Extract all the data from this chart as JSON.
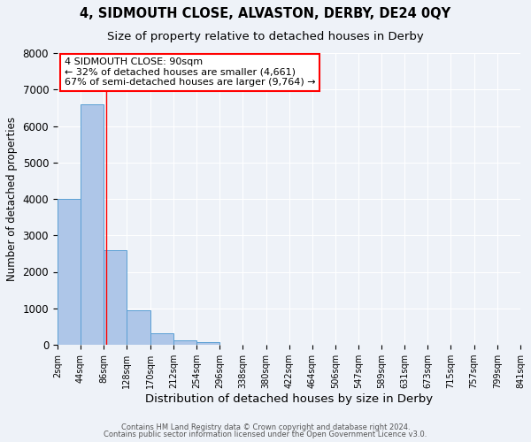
{
  "title": "4, SIDMOUTH CLOSE, ALVASTON, DERBY, DE24 0QY",
  "subtitle": "Size of property relative to detached houses in Derby",
  "xlabel": "Distribution of detached houses by size in Derby",
  "ylabel": "Number of detached properties",
  "bin_edges": [
    2,
    44,
    86,
    128,
    170,
    212,
    254,
    296,
    338,
    380,
    422,
    464,
    506,
    547,
    589,
    631,
    673,
    715,
    757,
    799,
    841
  ],
  "bar_heights": [
    4000,
    6600,
    2600,
    950,
    320,
    130,
    80,
    0,
    0,
    0,
    0,
    0,
    0,
    0,
    0,
    0,
    0,
    0,
    0,
    0
  ],
  "bar_color": "#aec6e8",
  "bar_edge_color": "#5a9fd4",
  "property_line_x": 90,
  "property_line_color": "red",
  "ylim": [
    0,
    8000
  ],
  "yticks": [
    0,
    1000,
    2000,
    3000,
    4000,
    5000,
    6000,
    7000,
    8000
  ],
  "annotation_box_text": "4 SIDMOUTH CLOSE: 90sqm\n← 32% of detached houses are smaller (4,661)\n67% of semi-detached houses are larger (9,764) →",
  "footer_line1": "Contains HM Land Registry data © Crown copyright and database right 2024.",
  "footer_line2": "Contains public sector information licensed under the Open Government Licence v3.0.",
  "background_color": "#eef2f8",
  "grid_color": "#ffffff",
  "title_fontsize": 10.5,
  "subtitle_fontsize": 9.5,
  "tick_label_fontsize": 7,
  "ylabel_fontsize": 8.5,
  "xlabel_fontsize": 9.5,
  "annotation_fontsize": 8,
  "footer_fontsize": 6
}
